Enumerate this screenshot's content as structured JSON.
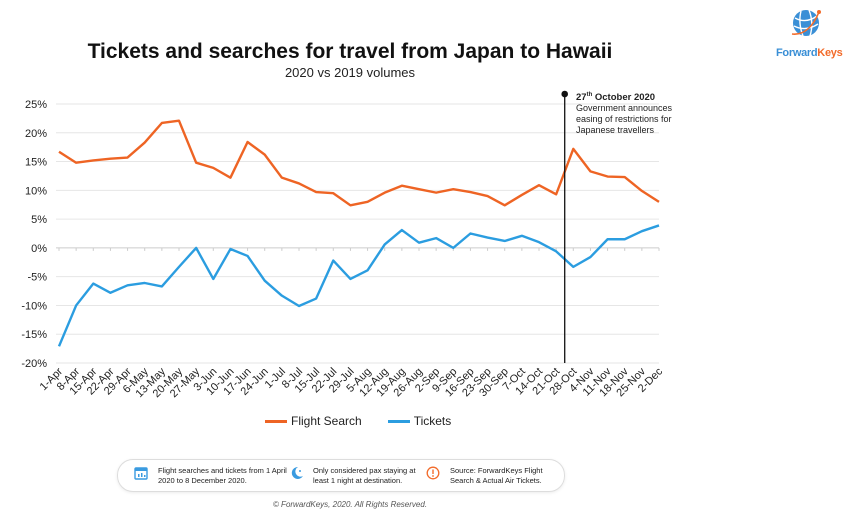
{
  "logo": {
    "brand_part1": "Forward",
    "brand_part2": "Keys",
    "blue": "#3a8fd6",
    "orange": "#f26b2a"
  },
  "chart_data": {
    "type": "line",
    "title": "Tickets and searches for travel from Japan to Hawaii",
    "subtitle": "2020 vs 2019 volumes",
    "xlabel": "",
    "ylabel": "",
    "ylim": [
      -20,
      25
    ],
    "yticks": [
      25,
      20,
      15,
      10,
      5,
      0,
      -5,
      -10,
      -15,
      -20
    ],
    "ytick_labels": [
      "25%",
      "20%",
      "15%",
      "10%",
      "5%",
      "0%",
      "-5%",
      "-10%",
      "-15%",
      "-20%"
    ],
    "grid": true,
    "legend_position": "bottom",
    "categories": [
      "1-Apr",
      "8-Apr",
      "15-Apr",
      "22-Apr",
      "29-Apr",
      "6-May",
      "13-May",
      "20-May",
      "27-May",
      "3-Jun",
      "10-Jun",
      "17-Jun",
      "24-Jun",
      "1-Jul",
      "8-Jul",
      "15-Jul",
      "22-Jul",
      "29-Jul",
      "5-Aug",
      "12-Aug",
      "19-Aug",
      "26-Aug",
      "2-Sep",
      "9-Sep",
      "16-Sep",
      "23-Sep",
      "30-Sep",
      "7-Oct",
      "14-Oct",
      "21-Oct",
      "28-Oct",
      "4-Nov",
      "11-Nov",
      "18-Nov",
      "25-Nov",
      "2-Dec"
    ],
    "series": [
      {
        "name": "Flight Search",
        "color": "#ee6424",
        "values": [
          16.7,
          14.8,
          15.2,
          15.5,
          15.7,
          18.3,
          21.7,
          22.1,
          14.8,
          13.9,
          12.2,
          18.4,
          16.2,
          12.2,
          11.2,
          9.7,
          9.5,
          7.4,
          8.0,
          9.6,
          10.8,
          10.2,
          9.6,
          10.2,
          9.7,
          9.0,
          7.4,
          9.2,
          10.9,
          9.3,
          17.2,
          13.3,
          12.4,
          12.3,
          9.9,
          8.0
        ]
      },
      {
        "name": "Tickets",
        "color": "#2b9de0",
        "values": [
          -17.1,
          -10.0,
          -6.2,
          -7.8,
          -6.5,
          -6.1,
          -6.7,
          -3.3,
          0.0,
          -5.4,
          -0.2,
          -1.4,
          -5.7,
          -8.3,
          -10.1,
          -8.8,
          -2.2,
          -5.4,
          -3.9,
          0.6,
          3.1,
          0.9,
          1.7,
          0.0,
          2.5,
          1.8,
          1.2,
          2.1,
          1.0,
          -0.6,
          -3.3,
          -1.6,
          1.5,
          1.5,
          2.9,
          3.9
        ]
      }
    ],
    "annotation": {
      "position_between": [
        "21-Oct",
        "28-Oct"
      ],
      "date_day": "27",
      "date_suffix": "th",
      "date_rest": " October 2020",
      "lines": [
        "Government announces",
        "easing of restrictions for",
        "Japanese travellers"
      ]
    }
  },
  "notes": [
    {
      "icon": "calendar-icon",
      "text": "Flight searches and tickets from 1 April 2020 to 8 December 2020."
    },
    {
      "icon": "moon-icon",
      "text": "Only considered pax staying at least 1 night at destination."
    },
    {
      "icon": "warning-icon",
      "text": "Source: ForwardKeys Flight Search & Actual Air Tickets."
    }
  ],
  "copyright": "© ForwardKeys, 2020. All Rights Reserved."
}
